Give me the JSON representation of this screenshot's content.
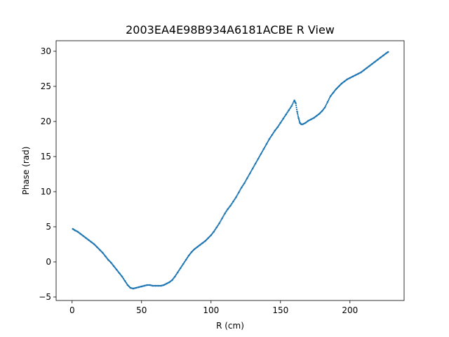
{
  "chart_data": {
    "type": "scatter",
    "title": "2003EA4E98B934A6181ACBE R View",
    "xlabel": "R (cm)",
    "ylabel": "Phase (rad)",
    "xlim": [
      -11.5,
      239
    ],
    "ylim": [
      -5.5,
      31.5
    ],
    "xticks": [
      0,
      50,
      100,
      150,
      200
    ],
    "yticks": [
      -5,
      0,
      5,
      10,
      15,
      20,
      25,
      30
    ],
    "xtick_labels": [
      "0",
      "50",
      "100",
      "150",
      "200"
    ],
    "ytick_labels": [
      "−5",
      "0",
      "5",
      "10",
      "15",
      "20",
      "25",
      "30"
    ],
    "grid": false,
    "legend": "none",
    "marker_color": "#1f77b4",
    "series": [
      {
        "x": [
          0.5,
          2,
          4,
          6,
          8,
          10,
          12,
          14,
          16,
          18,
          20,
          22,
          24,
          26,
          28,
          30,
          32,
          34,
          36,
          38,
          40,
          42,
          44,
          46,
          48,
          50,
          52,
          54,
          56,
          58,
          60,
          62,
          64,
          66,
          68,
          70,
          72,
          74,
          76,
          78,
          80,
          82,
          84,
          86,
          88,
          90,
          92,
          94,
          96,
          98,
          100,
          102,
          104,
          106,
          108,
          110,
          112,
          114,
          116,
          118,
          120,
          122,
          124,
          126,
          128,
          130,
          132,
          134,
          136,
          138,
          140,
          142,
          144,
          146,
          148,
          150,
          152,
          154,
          156,
          158,
          160,
          161,
          162,
          163,
          164,
          165,
          166,
          168,
          170,
          172,
          174,
          176,
          178,
          180,
          182,
          184,
          186,
          188,
          190,
          192,
          194,
          196,
          198,
          200,
          202,
          204,
          206,
          208,
          210,
          212,
          214,
          216,
          218,
          220,
          222,
          224,
          226,
          227.5
        ],
        "y": [
          4.7,
          4.5,
          4.3,
          4.0,
          3.7,
          3.4,
          3.1,
          2.8,
          2.5,
          2.1,
          1.7,
          1.3,
          0.8,
          0.3,
          -0.1,
          -0.6,
          -1.1,
          -1.6,
          -2.1,
          -2.7,
          -3.3,
          -3.7,
          -3.8,
          -3.7,
          -3.6,
          -3.5,
          -3.4,
          -3.3,
          -3.3,
          -3.4,
          -3.4,
          -3.4,
          -3.4,
          -3.3,
          -3.1,
          -2.9,
          -2.6,
          -2.1,
          -1.5,
          -0.9,
          -0.3,
          0.3,
          0.9,
          1.4,
          1.8,
          2.1,
          2.4,
          2.7,
          3.0,
          3.4,
          3.8,
          4.3,
          4.9,
          5.5,
          6.2,
          6.9,
          7.5,
          8.0,
          8.6,
          9.2,
          9.9,
          10.6,
          11.2,
          11.9,
          12.6,
          13.3,
          14.0,
          14.7,
          15.4,
          16.1,
          16.8,
          17.5,
          18.1,
          18.7,
          19.2,
          19.8,
          20.4,
          21.0,
          21.6,
          22.2,
          23.0,
          22.6,
          21.4,
          20.5,
          19.8,
          19.6,
          19.6,
          19.8,
          20.1,
          20.3,
          20.5,
          20.8,
          21.1,
          21.5,
          22.0,
          22.8,
          23.6,
          24.1,
          24.6,
          25.0,
          25.4,
          25.7,
          26.0,
          26.2,
          26.4,
          26.6,
          26.8,
          27.0,
          27.3,
          27.6,
          27.9,
          28.2,
          28.5,
          28.8,
          29.1,
          29.4,
          29.7,
          29.9
        ]
      }
    ]
  }
}
